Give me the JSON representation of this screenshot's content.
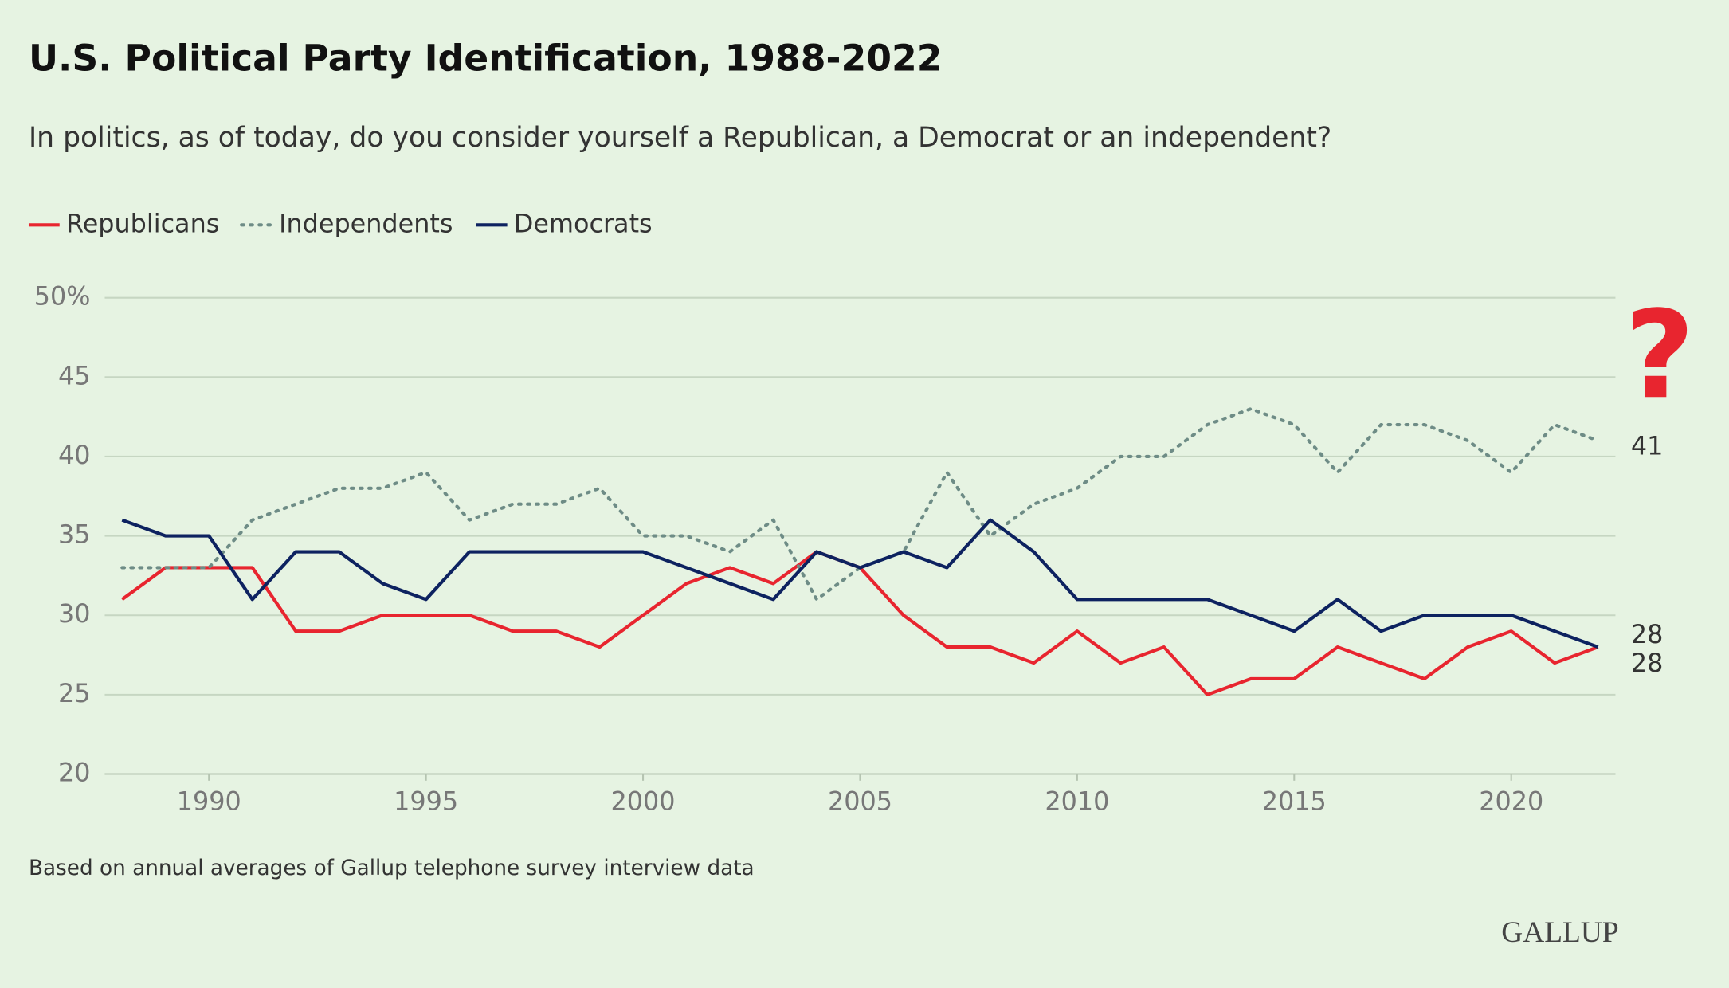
{
  "chart_data": {
    "type": "line",
    "title": "U.S. Political Party Identification, 1988-2022",
    "subtitle": "In politics, as of today, do you consider yourself a Republican, a Democrat or an independent?",
    "footnote": "Based on annual averages of Gallup telephone survey interview data",
    "source": "GALLUP",
    "annotation": "?",
    "x": [
      1988,
      1989,
      1990,
      1991,
      1992,
      1993,
      1994,
      1995,
      1996,
      1997,
      1998,
      1999,
      2000,
      2001,
      2002,
      2003,
      2004,
      2005,
      2006,
      2007,
      2008,
      2009,
      2010,
      2011,
      2012,
      2013,
      2014,
      2015,
      2016,
      2017,
      2018,
      2019,
      2020,
      2021,
      2022
    ],
    "series": [
      {
        "name": "Republicans",
        "color": "#e8252f",
        "style": "solid",
        "values": [
          31,
          33,
          33,
          33,
          29,
          29,
          30,
          30,
          30,
          29,
          29,
          28,
          30,
          32,
          33,
          32,
          34,
          33,
          30,
          28,
          28,
          27,
          29,
          27,
          28,
          25,
          26,
          26,
          28,
          27,
          26,
          28,
          29,
          27,
          28
        ]
      },
      {
        "name": "Independents",
        "color": "#6e8c86",
        "style": "dotted",
        "values": [
          33,
          33,
          33,
          36,
          37,
          38,
          38,
          39,
          36,
          37,
          37,
          38,
          35,
          35,
          34,
          36,
          31,
          33,
          34,
          39,
          35,
          37,
          38,
          40,
          40,
          42,
          43,
          42,
          39,
          42,
          42,
          41,
          39,
          42,
          41
        ]
      },
      {
        "name": "Democrats",
        "color": "#0d2260",
        "style": "solid",
        "values": [
          36,
          35,
          35,
          31,
          34,
          34,
          32,
          31,
          34,
          34,
          34,
          34,
          34,
          33,
          32,
          31,
          34,
          33,
          34,
          33,
          36,
          34,
          31,
          31,
          31,
          31,
          30,
          29,
          31,
          29,
          30,
          30,
          30,
          29,
          28
        ]
      }
    ],
    "xlim": [
      1987.6,
      2022.4
    ],
    "xticks": [
      1990,
      1995,
      2000,
      2005,
      2010,
      2015,
      2020
    ],
    "ylim": [
      20,
      50
    ],
    "yticks": [
      20,
      25,
      30,
      35,
      40,
      45,
      {
        "value": 50,
        "label": "50%"
      }
    ],
    "grid": true,
    "legend": "top-left"
  }
}
